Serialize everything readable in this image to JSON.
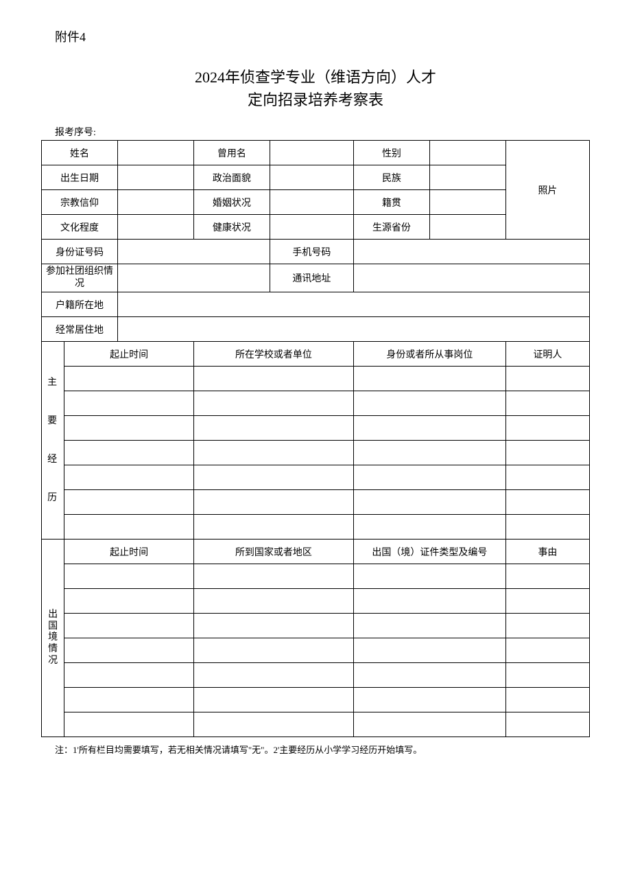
{
  "attachment_label": "附件4",
  "title_line1": "2024年侦查学专业（维语方向）人才",
  "title_line2": "定向招录培养考察表",
  "reg_num_label": "报考序号:",
  "labels": {
    "name": "姓名",
    "former_name": "曾用名",
    "gender": "性别",
    "photo": "照片",
    "birth_date": "出生日期",
    "political_status": "政治面貌",
    "ethnicity": "民族",
    "religion": "宗教信仰",
    "marital_status": "婚姻状况",
    "native_place": "籍贯",
    "education": "文化程度",
    "health": "健康状况",
    "origin_province": "生源省份",
    "id_number": "身份证号码",
    "phone": "手机号码",
    "org_participation": "参加社团组织情况",
    "address": "通讯地址",
    "household_location": "户籍所在地",
    "residence": "经常居住地",
    "section_experience": "主",
    "section_experience2": "要",
    "section_experience3": "经",
    "section_experience4": "历",
    "section_abroad": "出国境情况",
    "period": "起止时间",
    "school_unit": "所在学校或者单位",
    "position": "身份或者所从事岗位",
    "witness": "证明人",
    "country_region": "所到国家或者地区",
    "doc_type_number": "出国（境）证件类型及编号",
    "reason": "事由"
  },
  "values": {
    "name": "",
    "former_name": "",
    "gender": "",
    "birth_date": "",
    "political_status": "",
    "ethnicity": "",
    "religion": "",
    "marital_status": "",
    "native_place": "",
    "education": "",
    "health": "",
    "origin_province": "",
    "id_number": "",
    "phone": "",
    "org_participation": "",
    "address": "",
    "household_location": "",
    "residence": ""
  },
  "experience_rows": [
    {
      "period": "",
      "unit": "",
      "position": "",
      "witness": ""
    },
    {
      "period": "",
      "unit": "",
      "position": "",
      "witness": ""
    },
    {
      "period": "",
      "unit": "",
      "position": "",
      "witness": ""
    },
    {
      "period": "",
      "unit": "",
      "position": "",
      "witness": ""
    },
    {
      "period": "",
      "unit": "",
      "position": "",
      "witness": ""
    },
    {
      "period": "",
      "unit": "",
      "position": "",
      "witness": ""
    },
    {
      "period": "",
      "unit": "",
      "position": "",
      "witness": ""
    }
  ],
  "abroad_rows": [
    {
      "period": "",
      "region": "",
      "doc": "",
      "reason": ""
    },
    {
      "period": "",
      "region": "",
      "doc": "",
      "reason": ""
    },
    {
      "period": "",
      "region": "",
      "doc": "",
      "reason": ""
    },
    {
      "period": "",
      "region": "",
      "doc": "",
      "reason": ""
    },
    {
      "period": "",
      "region": "",
      "doc": "",
      "reason": ""
    },
    {
      "period": "",
      "region": "",
      "doc": "",
      "reason": ""
    },
    {
      "period": "",
      "region": "",
      "doc": "",
      "reason": ""
    }
  ],
  "footnote": "注：1'所有栏目均需要填写，若无相关情况请填写\"无\"。2'主要经历从小学学习经历开始填写。",
  "colors": {
    "border": "#000000",
    "background": "#ffffff",
    "text": "#000000"
  }
}
